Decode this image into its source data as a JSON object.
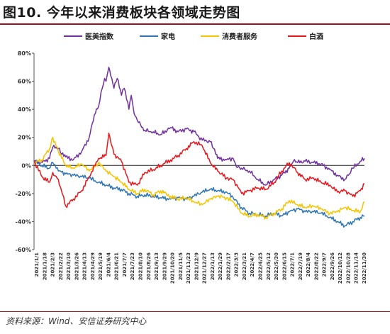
{
  "figure": {
    "title": "图10. 今年以来消费板块各领域走势图",
    "source": "资料来源：Wind、安信证券研究中心"
  },
  "chart_data": {
    "type": "line",
    "title": "",
    "xlabel": "",
    "ylabel": "",
    "ylim": [
      -0.6,
      0.8
    ],
    "y_ticks": [
      {
        "value": 0.8,
        "label": "80%"
      },
      {
        "value": 0.6,
        "label": "60%"
      },
      {
        "value": 0.4,
        "label": "40%"
      },
      {
        "value": 0.2,
        "label": "20%"
      },
      {
        "value": 0.0,
        "label": "0%"
      },
      {
        "value": -0.2,
        "label": "-20%"
      },
      {
        "value": -0.4,
        "label": "-40%"
      },
      {
        "value": -0.6,
        "label": "-60%"
      }
    ],
    "x_tick_labels": [
      "2021/1/1",
      "2021/1/18",
      "2021/2/3",
      "2021/2/22",
      "2021/3/10",
      "2021/3/26",
      "2021/4/13",
      "2021/4/29",
      "2021/5/19",
      "2021/6/4",
      "2021/6/21",
      "2021/7/7",
      "2021/7/23",
      "2021/8/10",
      "2021/8/26",
      "2021/9/13",
      "2021/9/29",
      "2021/10/20",
      "2021/11/5",
      "2021/11/23",
      "2021/12/9",
      "2021/12/27",
      "2022/1/13",
      "2022/1/29",
      "2022/2/17",
      "2022/3/3",
      "2022/3/21",
      "2022/4/7",
      "2022/4/25",
      "2022/5/12",
      "2022/5/30",
      "2022/6/15",
      "2022/7/1",
      "2022/7/19",
      "2022/8/4",
      "2022/8/22",
      "2022/9/7",
      "2022/9/26",
      "2022/10/12",
      "2022/10/28",
      "2022/11/14",
      "2022/11/30"
    ],
    "x_start": "2021/1/1",
    "x_end": "2022/12/9",
    "grid": false,
    "zero_line": true,
    "legend_position": "top",
    "series": [
      {
        "name": "医美指数",
        "color": "#7030a0",
        "points": [
          [
            "2021/1/1",
            0.03
          ],
          [
            "2021/1/18",
            0.02
          ],
          [
            "2021/2/3",
            0.05
          ],
          [
            "2021/2/10",
            0.13
          ],
          [
            "2021/2/22",
            0.12
          ],
          [
            "2021/3/1",
            0.08
          ],
          [
            "2021/3/10",
            0.06
          ],
          [
            "2021/3/26",
            0.04
          ],
          [
            "2021/4/13",
            0.1
          ],
          [
            "2021/4/29",
            0.2
          ],
          [
            "2021/5/10",
            0.36
          ],
          [
            "2021/5/19",
            0.42
          ],
          [
            "2021/5/27",
            0.55
          ],
          [
            "2021/6/1",
            0.62
          ],
          [
            "2021/6/4",
            0.6
          ],
          [
            "2021/6/10",
            0.7
          ],
          [
            "2021/6/14",
            0.64
          ],
          [
            "2021/6/21",
            0.55
          ],
          [
            "2021/6/28",
            0.62
          ],
          [
            "2021/7/7",
            0.5
          ],
          [
            "2021/7/13",
            0.55
          ],
          [
            "2021/7/23",
            0.4
          ],
          [
            "2021/7/28",
            0.5
          ],
          [
            "2021/8/3",
            0.37
          ],
          [
            "2021/8/10",
            0.32
          ],
          [
            "2021/8/26",
            0.25
          ],
          [
            "2021/9/13",
            0.24
          ],
          [
            "2021/9/29",
            0.22
          ],
          [
            "2021/10/20",
            0.27
          ],
          [
            "2021/11/5",
            0.24
          ],
          [
            "2021/11/23",
            0.26
          ],
          [
            "2021/12/9",
            0.24
          ],
          [
            "2021/12/27",
            0.18
          ],
          [
            "2022/1/13",
            0.17
          ],
          [
            "2022/1/20",
            0.12
          ],
          [
            "2022/1/29",
            0.05
          ],
          [
            "2022/2/17",
            0.04
          ],
          [
            "2022/3/3",
            0.05
          ],
          [
            "2022/3/10",
            -0.01
          ],
          [
            "2022/3/21",
            -0.02
          ],
          [
            "2022/4/7",
            -0.04
          ],
          [
            "2022/4/25",
            -0.1
          ],
          [
            "2022/5/12",
            -0.14
          ],
          [
            "2022/5/30",
            -0.1
          ],
          [
            "2022/6/15",
            -0.07
          ],
          [
            "2022/7/1",
            -0.02
          ],
          [
            "2022/7/10",
            0.03
          ],
          [
            "2022/7/19",
            0.02
          ],
          [
            "2022/8/4",
            0.03
          ],
          [
            "2022/8/22",
            0.02
          ],
          [
            "2022/9/7",
            0.01
          ],
          [
            "2022/9/26",
            -0.03
          ],
          [
            "2022/10/12",
            -0.07
          ],
          [
            "2022/10/28",
            -0.1
          ],
          [
            "2022/11/7",
            -0.06
          ],
          [
            "2022/11/14",
            -0.02
          ],
          [
            "2022/11/30",
            0.03
          ],
          [
            "2022/12/9",
            0.05
          ]
        ]
      },
      {
        "name": "家电",
        "color": "#2e75b6",
        "points": [
          [
            "2021/1/1",
            0.03
          ],
          [
            "2021/1/18",
            0.0
          ],
          [
            "2021/2/3",
            -0.02
          ],
          [
            "2021/2/10",
            0.02
          ],
          [
            "2021/2/22",
            -0.04
          ],
          [
            "2021/3/10",
            -0.06
          ],
          [
            "2021/3/26",
            -0.07
          ],
          [
            "2021/4/13",
            -0.08
          ],
          [
            "2021/4/29",
            -0.09
          ],
          [
            "2021/5/19",
            -0.12
          ],
          [
            "2021/6/4",
            -0.14
          ],
          [
            "2021/6/21",
            -0.16
          ],
          [
            "2021/7/7",
            -0.17
          ],
          [
            "2021/7/23",
            -0.2
          ],
          [
            "2021/8/10",
            -0.22
          ],
          [
            "2021/8/26",
            -0.21
          ],
          [
            "2021/9/13",
            -0.22
          ],
          [
            "2021/9/29",
            -0.23
          ],
          [
            "2021/10/20",
            -0.24
          ],
          [
            "2021/11/5",
            -0.23
          ],
          [
            "2021/11/23",
            -0.24
          ],
          [
            "2021/12/9",
            -0.22
          ],
          [
            "2021/12/27",
            -0.19
          ],
          [
            "2022/1/13",
            -0.17
          ],
          [
            "2022/1/29",
            -0.18
          ],
          [
            "2022/2/17",
            -0.19
          ],
          [
            "2022/3/3",
            -0.23
          ],
          [
            "2022/3/21",
            -0.3
          ],
          [
            "2022/4/7",
            -0.34
          ],
          [
            "2022/4/25",
            -0.35
          ],
          [
            "2022/5/12",
            -0.36
          ],
          [
            "2022/5/30",
            -0.34
          ],
          [
            "2022/6/15",
            -0.36
          ],
          [
            "2022/7/1",
            -0.33
          ],
          [
            "2022/7/19",
            -0.31
          ],
          [
            "2022/8/4",
            -0.33
          ],
          [
            "2022/8/22",
            -0.33
          ],
          [
            "2022/9/7",
            -0.34
          ],
          [
            "2022/9/26",
            -0.37
          ],
          [
            "2022/10/12",
            -0.4
          ],
          [
            "2022/10/28",
            -0.43
          ],
          [
            "2022/11/14",
            -0.4
          ],
          [
            "2022/11/30",
            -0.37
          ],
          [
            "2022/12/9",
            -0.36
          ]
        ]
      },
      {
        "name": "消费者服务",
        "color": "#f5c400",
        "points": [
          [
            "2021/1/1",
            0.02
          ],
          [
            "2021/1/18",
            0.04
          ],
          [
            "2021/2/3",
            0.12
          ],
          [
            "2021/2/10",
            0.2
          ],
          [
            "2021/2/22",
            0.1
          ],
          [
            "2021/3/10",
            0.0
          ],
          [
            "2021/3/26",
            -0.02
          ],
          [
            "2021/4/13",
            0.01
          ],
          [
            "2021/4/29",
            -0.04
          ],
          [
            "2021/5/19",
            0.02
          ],
          [
            "2021/6/4",
            -0.04
          ],
          [
            "2021/6/21",
            -0.08
          ],
          [
            "2021/7/7",
            -0.12
          ],
          [
            "2021/7/23",
            -0.17
          ],
          [
            "2021/8/10",
            -0.2
          ],
          [
            "2021/8/26",
            -0.17
          ],
          [
            "2021/9/13",
            -0.21
          ],
          [
            "2021/9/29",
            -0.18
          ],
          [
            "2021/10/20",
            -0.22
          ],
          [
            "2021/11/5",
            -0.24
          ],
          [
            "2021/11/23",
            -0.23
          ],
          [
            "2021/12/9",
            -0.26
          ],
          [
            "2021/12/27",
            -0.28
          ],
          [
            "2022/1/13",
            -0.24
          ],
          [
            "2022/1/29",
            -0.22
          ],
          [
            "2022/2/17",
            -0.23
          ],
          [
            "2022/3/3",
            -0.26
          ],
          [
            "2022/3/21",
            -0.34
          ],
          [
            "2022/4/7",
            -0.36
          ],
          [
            "2022/4/25",
            -0.35
          ],
          [
            "2022/5/12",
            -0.37
          ],
          [
            "2022/5/30",
            -0.34
          ],
          [
            "2022/6/15",
            -0.31
          ],
          [
            "2022/7/1",
            -0.25
          ],
          [
            "2022/7/19",
            -0.28
          ],
          [
            "2022/8/4",
            -0.3
          ],
          [
            "2022/8/22",
            -0.29
          ],
          [
            "2022/9/7",
            -0.31
          ],
          [
            "2022/9/26",
            -0.34
          ],
          [
            "2022/10/12",
            -0.33
          ],
          [
            "2022/10/28",
            -0.3
          ],
          [
            "2022/11/14",
            -0.32
          ],
          [
            "2022/11/30",
            -0.33
          ],
          [
            "2022/12/9",
            -0.26
          ]
        ]
      },
      {
        "name": "白酒",
        "color": "#e8151b",
        "points": [
          [
            "2021/1/1",
            0.03
          ],
          [
            "2021/1/18",
            -0.08
          ],
          [
            "2021/2/3",
            -0.12
          ],
          [
            "2021/2/10",
            -0.05
          ],
          [
            "2021/2/22",
            -0.1
          ],
          [
            "2021/3/10",
            -0.29
          ],
          [
            "2021/3/26",
            -0.24
          ],
          [
            "2021/4/13",
            -0.18
          ],
          [
            "2021/4/29",
            -0.08
          ],
          [
            "2021/5/19",
            0.05
          ],
          [
            "2021/6/4",
            0.07
          ],
          [
            "2021/6/10",
            0.23
          ],
          [
            "2021/6/21",
            0.08
          ],
          [
            "2021/7/7",
            0.03
          ],
          [
            "2021/7/23",
            -0.12
          ],
          [
            "2021/8/10",
            -0.14
          ],
          [
            "2021/8/26",
            -0.05
          ],
          [
            "2021/9/13",
            -0.03
          ],
          [
            "2021/9/29",
            0.0
          ],
          [
            "2021/10/20",
            0.04
          ],
          [
            "2021/11/5",
            0.07
          ],
          [
            "2021/11/23",
            0.12
          ],
          [
            "2021/12/9",
            0.17
          ],
          [
            "2021/12/27",
            0.14
          ],
          [
            "2022/1/13",
            0.02
          ],
          [
            "2022/1/29",
            -0.04
          ],
          [
            "2022/2/17",
            -0.09
          ],
          [
            "2022/3/3",
            -0.1
          ],
          [
            "2022/3/21",
            -0.2
          ],
          [
            "2022/4/7",
            -0.18
          ],
          [
            "2022/4/25",
            -0.16
          ],
          [
            "2022/5/12",
            -0.17
          ],
          [
            "2022/5/30",
            -0.12
          ],
          [
            "2022/6/15",
            -0.04
          ],
          [
            "2022/7/1",
            0.02
          ],
          [
            "2022/7/19",
            -0.05
          ],
          [
            "2022/8/4",
            -0.1
          ],
          [
            "2022/8/22",
            -0.09
          ],
          [
            "2022/9/7",
            -0.12
          ],
          [
            "2022/9/26",
            -0.14
          ],
          [
            "2022/10/12",
            -0.19
          ],
          [
            "2022/10/28",
            -0.18
          ],
          [
            "2022/11/14",
            -0.22
          ],
          [
            "2022/11/30",
            -0.18
          ],
          [
            "2022/12/9",
            -0.13
          ]
        ]
      }
    ]
  }
}
